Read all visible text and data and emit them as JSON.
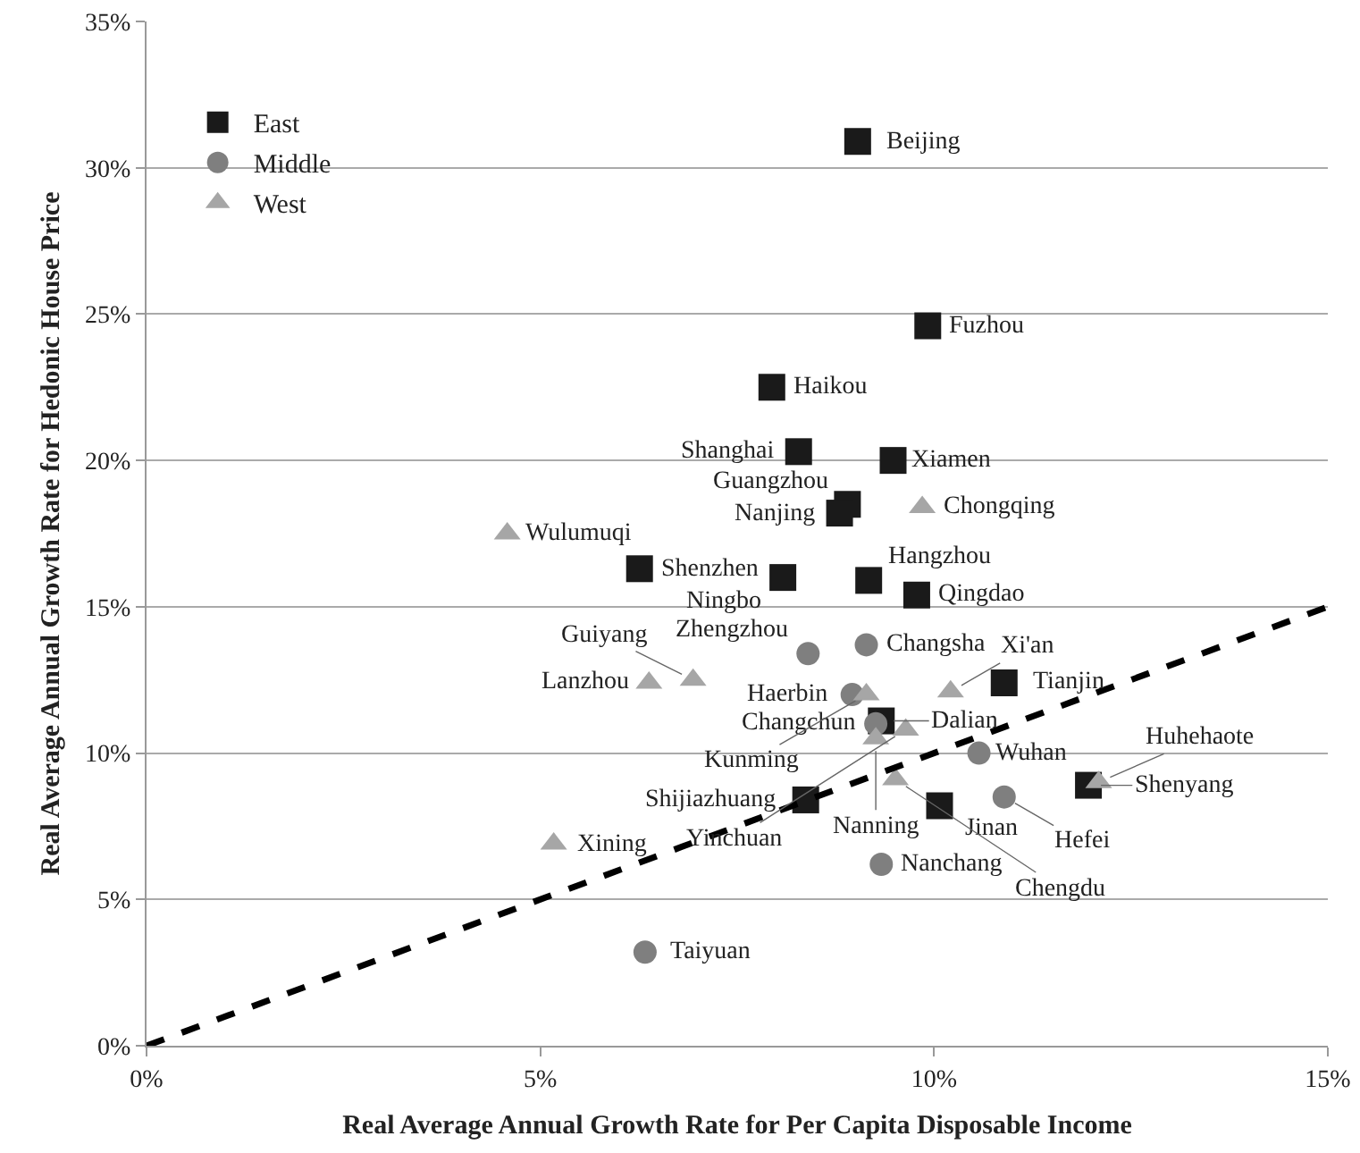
{
  "chart_data": {
    "type": "scatter",
    "xlabel": "Real Average Annual Growth Rate for Per Capita Disposable Income",
    "ylabel": "Real Average Annual Growth Rate for Hedonic House Price",
    "xlim": [
      0,
      15
    ],
    "xticks": [
      {
        "value": 0,
        "label": "0%"
      },
      {
        "value": 5,
        "label": "5%"
      },
      {
        "value": 10,
        "label": "10%"
      },
      {
        "value": 15,
        "label": "15%"
      }
    ],
    "ylim": [
      0,
      35
    ],
    "yticks": [
      {
        "value": 0,
        "label": "0%"
      },
      {
        "value": 5,
        "label": "5%"
      },
      {
        "value": 10,
        "label": "10%"
      },
      {
        "value": 15,
        "label": "15%"
      },
      {
        "value": 20,
        "label": "20%"
      },
      {
        "value": 25,
        "label": "25%"
      },
      {
        "value": 30,
        "label": "30%"
      },
      {
        "value": 35,
        "label": "35%"
      }
    ],
    "grid": "y",
    "legend": "top left",
    "series": [
      {
        "name": "East",
        "color": "#1a1a1a",
        "marker": "square",
        "x": [
          9.03,
          9.92,
          7.94,
          8.28,
          9.48,
          8.9,
          8.8,
          6.26,
          8.08,
          9.17,
          9.78,
          10.89,
          9.33,
          8.37,
          10.07,
          11.96
        ],
        "values": [
          30.9,
          24.6,
          22.5,
          20.3,
          20.0,
          18.5,
          18.2,
          16.3,
          16.0,
          15.9,
          15.4,
          12.4,
          11.1,
          8.4,
          8.2,
          8.9
        ],
        "value_labels": [
          "Beijing",
          "Fuzhou",
          "Haikou",
          "Shanghai",
          "Xiamen",
          "Guangzhou",
          "Nanjing",
          "Shenzhen",
          "Ningbo",
          "Hangzhou",
          "Qingdao",
          "Tianjin",
          "Dalian",
          "Shijiazhuang",
          "Jinan",
          "Shenyang"
        ]
      },
      {
        "name": "Middle",
        "color": "#7f7f7f",
        "marker": "circle",
        "x": [
          8.4,
          9.14,
          8.96,
          9.26,
          10.57,
          10.89,
          9.33,
          6.33
        ],
        "values": [
          13.4,
          13.7,
          12.0,
          11.0,
          10.0,
          8.5,
          6.2,
          3.2
        ],
        "value_labels": [
          "Zhengzhou",
          "Changsha",
          "Haerbin",
          "Changchun",
          "Wuhan",
          "Hefei",
          "Nanchang",
          "Taiyuan"
        ]
      },
      {
        "name": "West",
        "color": "#a6a6a6",
        "marker": "triangle",
        "x": [
          4.58,
          9.85,
          6.38,
          6.94,
          9.14,
          10.21,
          9.26,
          9.64,
          9.51,
          12.09,
          5.17
        ],
        "values": [
          17.5,
          18.4,
          12.4,
          12.5,
          12.0,
          12.1,
          10.5,
          10.8,
          9.1,
          9.0,
          6.9
        ],
        "value_labels": [
          "Wulumuqi",
          "Chongqing",
          "Lanzhou",
          "Guiyang",
          "Kunming",
          "Xi'an",
          "Nanning",
          "Yinchuan",
          "Chengdu",
          "Huhehaote",
          "Xining"
        ]
      },
      {
        "type": "line",
        "color": "#000000",
        "marker": "none",
        "line_style": "dashed",
        "x": [
          0,
          15
        ],
        "values": [
          0,
          15
        ]
      }
    ]
  }
}
